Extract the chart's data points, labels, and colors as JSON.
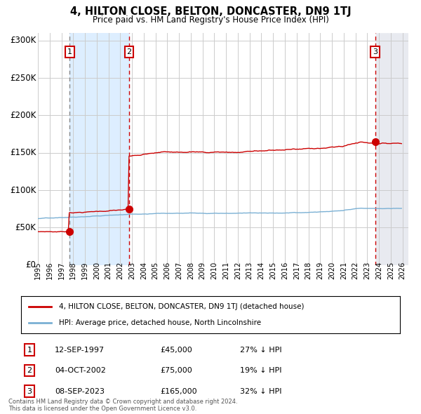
{
  "title": "4, HILTON CLOSE, BELTON, DONCASTER, DN9 1TJ",
  "subtitle": "Price paid vs. HM Land Registry's House Price Index (HPI)",
  "ylim": [
    0,
    310000
  ],
  "yticks": [
    0,
    50000,
    100000,
    150000,
    200000,
    250000,
    300000
  ],
  "ytick_labels": [
    "£0",
    "£50K",
    "£100K",
    "£150K",
    "£200K",
    "£250K",
    "£300K"
  ],
  "background_color": "#ffffff",
  "grid_color": "#cccccc",
  "sale_floats": [
    1997.7083,
    2002.75,
    2023.6667
  ],
  "sale_prices": [
    45000,
    75000,
    165000
  ],
  "red_line_color": "#cc0000",
  "blue_line_color": "#7ab0d4",
  "dot_color": "#cc0000",
  "shading_color": "#ddeeff",
  "legend_red_label": "4, HILTON CLOSE, BELTON, DONCASTER, DN9 1TJ (detached house)",
  "legend_blue_label": "HPI: Average price, detached house, North Lincolnshire",
  "sale_label_info": [
    {
      "num": "1",
      "date": "12-SEP-1997",
      "price": "£45,000",
      "hpi": "27% ↓ HPI"
    },
    {
      "num": "2",
      "date": "04-OCT-2002",
      "price": "£75,000",
      "hpi": "19% ↓ HPI"
    },
    {
      "num": "3",
      "date": "08-SEP-2023",
      "price": "£165,000",
      "hpi": "32% ↓ HPI"
    }
  ],
  "footer": "Contains HM Land Registry data © Crown copyright and database right 2024.\nThis data is licensed under the Open Government Licence v3.0."
}
